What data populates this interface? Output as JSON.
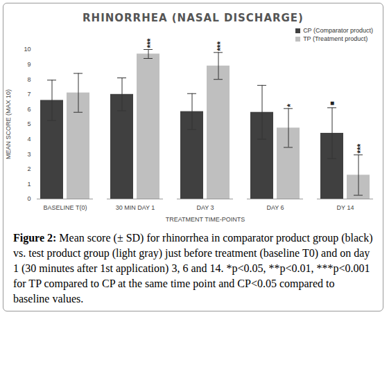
{
  "chart_data": {
    "type": "bar",
    "title": "RHINORRHEA (NASAL DISCHARGE)",
    "x_label": "TREATMENT TIME-POINTS",
    "y_label": "MEAN SCORE (MAX 10)",
    "categories": [
      "BASELINE T(0)",
      "30 MIN DAY 1",
      "DAY 3",
      "DAY 6",
      "DY 14"
    ],
    "series": [
      {
        "name": "CP (Comparator product)",
        "color": "#404040",
        "values": [
          6.6,
          7.0,
          5.85,
          5.8,
          4.4
        ],
        "sd": [
          1.35,
          1.1,
          1.2,
          1.8,
          1.7
        ]
      },
      {
        "name": "TP (Treatment product)",
        "color": "#bfbfbf",
        "values": [
          7.1,
          9.7,
          8.9,
          4.75,
          1.6
        ],
        "sd": [
          1.3,
          0.3,
          0.9,
          1.3,
          1.35
        ]
      }
    ],
    "ylim": [
      0,
      10
    ],
    "yticks": [
      0,
      1,
      2,
      3,
      4,
      5,
      6,
      7,
      8,
      9,
      10
    ],
    "grid": false,
    "legend": "top-right",
    "annotations": [
      {
        "category": "30 MIN DAY 1",
        "series": "TP (Treatment product)",
        "text": "***"
      },
      {
        "category": "DAY 3",
        "series": "TP (Treatment product)",
        "text": "***"
      },
      {
        "category": "DAY 6",
        "series": "TP (Treatment product)",
        "text": "*"
      },
      {
        "category": "DY 14",
        "series": "TP (Treatment product)",
        "text": "***"
      },
      {
        "category": "DY 14",
        "series": "CP (Comparator product)",
        "text": "■"
      }
    ],
    "caption": {
      "label": "Figure 2:",
      "text": "Mean score (± SD) for rhinorrhea in comparator product group (black) vs. test product group (light gray) just before treatment (baseline T0) and on day 1 (30 minutes after 1st application) 3, 6 and 14. *p<0.05, **p<0.01, ***p<0.001 for TP compared to CP at the same time point and CP<0.05 compared to baseline values."
    }
  }
}
